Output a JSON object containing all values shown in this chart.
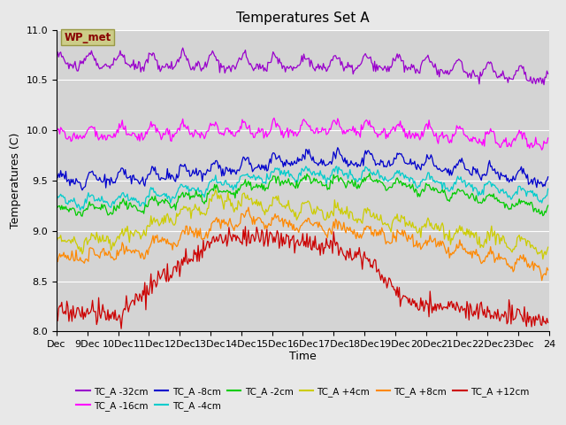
{
  "title": "Temperatures Set A",
  "xlabel": "Time",
  "ylabel": "Temperatures (C)",
  "ylim": [
    8.0,
    11.0
  ],
  "yticks": [
    8.0,
    8.5,
    9.0,
    9.5,
    10.0,
    10.5,
    11.0
  ],
  "xtick_labels": [
    "Dec",
    "9Dec",
    "10Dec",
    "11Dec",
    "12Dec",
    "13Dec",
    "14Dec",
    "15Dec",
    "16Dec",
    "17Dec",
    "18Dec",
    "19Dec",
    "20Dec",
    "21Dec",
    "22Dec",
    "23Dec",
    "24"
  ],
  "n_points": 480,
  "series": [
    {
      "label": "TC_A -32cm",
      "color": "#9900cc"
    },
    {
      "label": "TC_A -16cm",
      "color": "#ff00ff"
    },
    {
      "label": "TC_A -8cm",
      "color": "#0000cc"
    },
    {
      "label": "TC_A -4cm",
      "color": "#00cccc"
    },
    {
      "label": "TC_A -2cm",
      "color": "#00cc00"
    },
    {
      "label": "TC_A +4cm",
      "color": "#cccc00"
    },
    {
      "label": "TC_A +8cm",
      "color": "#ff8800"
    },
    {
      "label": "TC_A +12cm",
      "color": "#cc0000"
    }
  ],
  "wp_met_box_color": "#cccc88",
  "wp_met_text_color": "#880000",
  "bg_color": "#e8e8e8",
  "plot_bg_color": "#d4d4d4",
  "grid_color": "#ffffff"
}
